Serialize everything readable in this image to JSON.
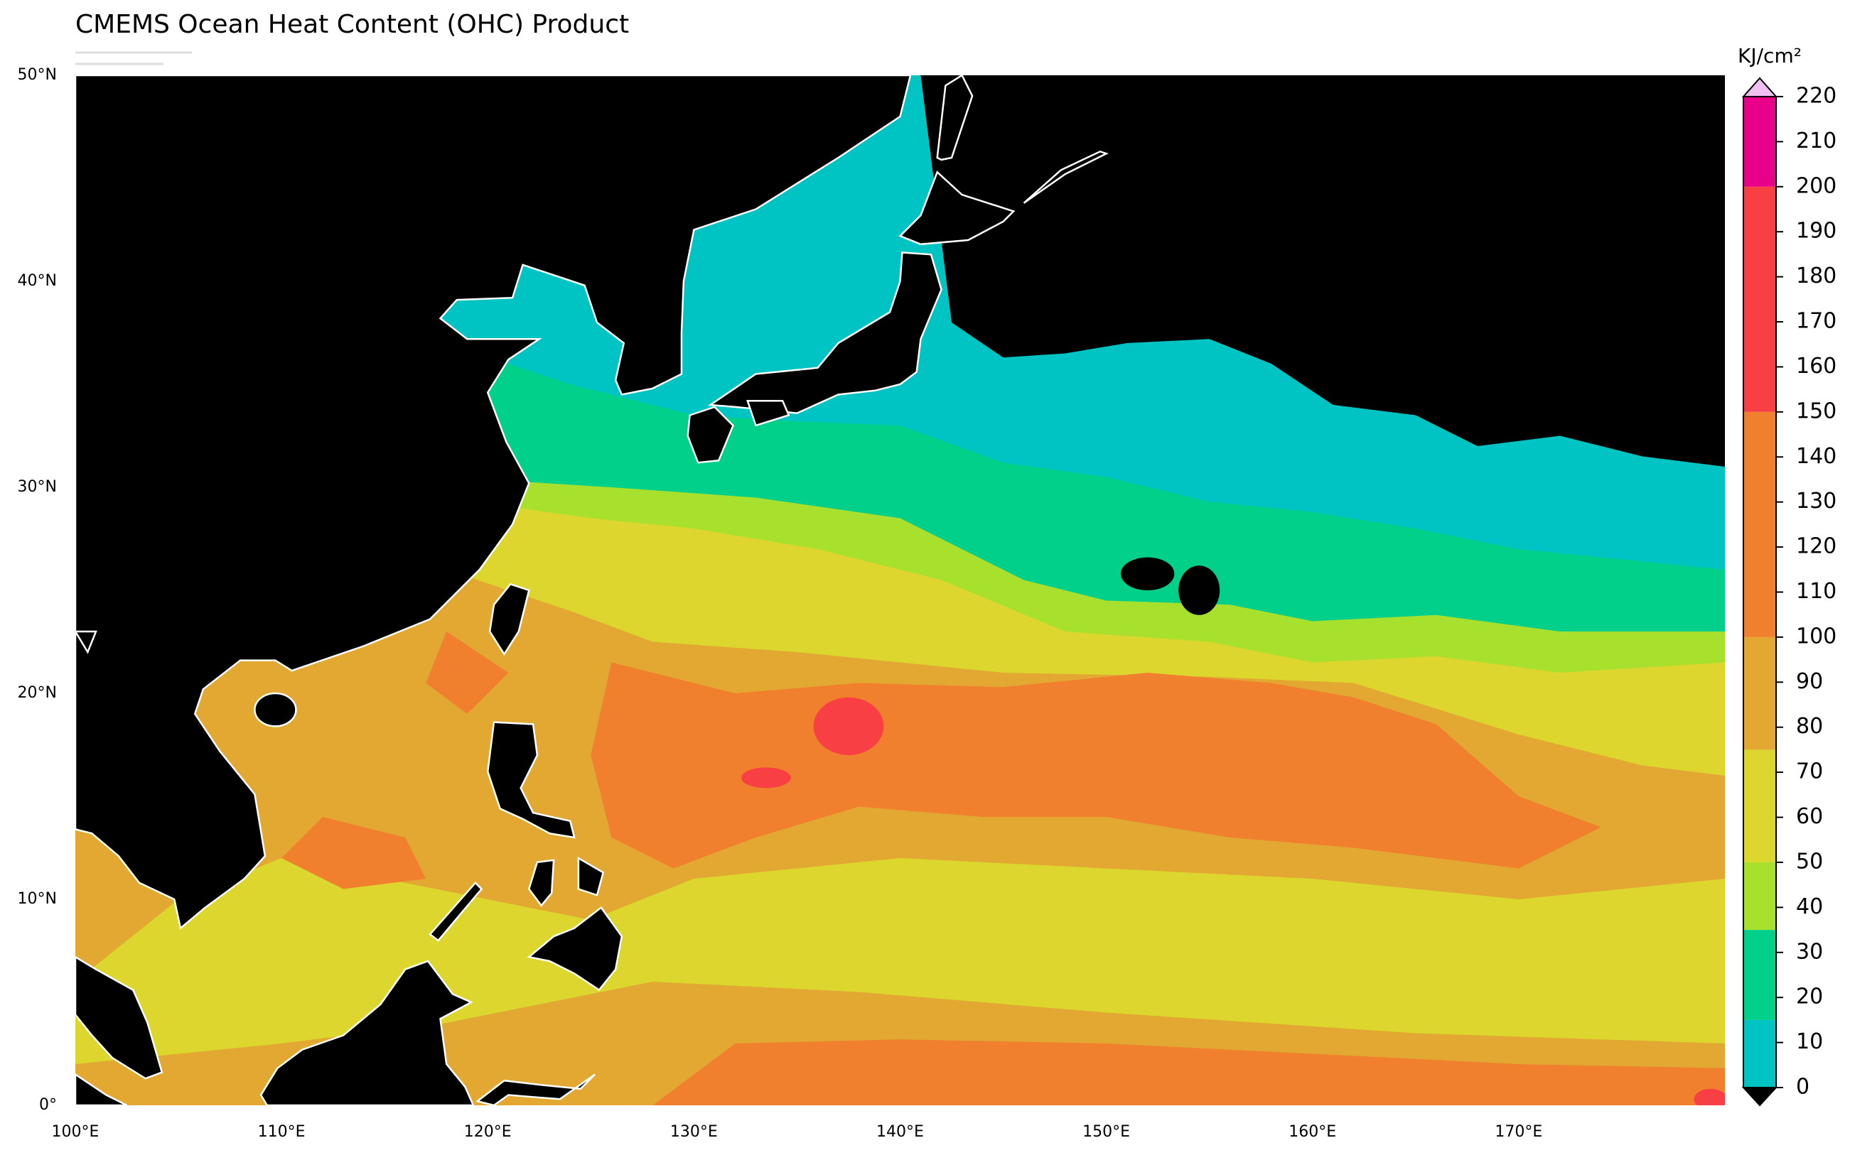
{
  "header": {
    "title": "CMEMS Ocean Heat Content (OHC) Product"
  },
  "map": {
    "xlim": [
      100,
      180
    ],
    "ylim": [
      0,
      50
    ],
    "xticks": [
      {
        "value": 100,
        "label": "100°E"
      },
      {
        "value": 110,
        "label": "110°E"
      },
      {
        "value": 120,
        "label": "120°E"
      },
      {
        "value": 130,
        "label": "130°E"
      },
      {
        "value": 140,
        "label": "140°E"
      },
      {
        "value": 150,
        "label": "150°E"
      },
      {
        "value": 160,
        "label": "160°E"
      },
      {
        "value": 170,
        "label": "170°E"
      }
    ],
    "yticks": [
      {
        "value": 0,
        "label": "0°"
      },
      {
        "value": 10,
        "label": "10°N"
      },
      {
        "value": 20,
        "label": "20°N"
      },
      {
        "value": 30,
        "label": "30°N"
      },
      {
        "value": 40,
        "label": "40°N"
      },
      {
        "value": 50,
        "label": "50°N"
      }
    ]
  },
  "colorbar": {
    "label": "KJ/cm²",
    "lim": [
      0,
      220
    ],
    "ticks": [
      0,
      10,
      20,
      30,
      40,
      50,
      60,
      70,
      80,
      90,
      100,
      110,
      120,
      130,
      140,
      150,
      160,
      170,
      180,
      190,
      200,
      210,
      220
    ],
    "levels": [
      {
        "from": 0,
        "to": 15,
        "color": "#00c4c4"
      },
      {
        "from": 15,
        "to": 35,
        "color": "#00d08a"
      },
      {
        "from": 35,
        "to": 50,
        "color": "#a8e02e"
      },
      {
        "from": 50,
        "to": 75,
        "color": "#dcd62e"
      },
      {
        "from": 75,
        "to": 100,
        "color": "#e2a832"
      },
      {
        "from": 100,
        "to": 150,
        "color": "#f0802e"
      },
      {
        "from": 150,
        "to": 200,
        "color": "#f84044"
      },
      {
        "from": 200,
        "to": 220,
        "color": "#e8008a"
      }
    ]
  }
}
